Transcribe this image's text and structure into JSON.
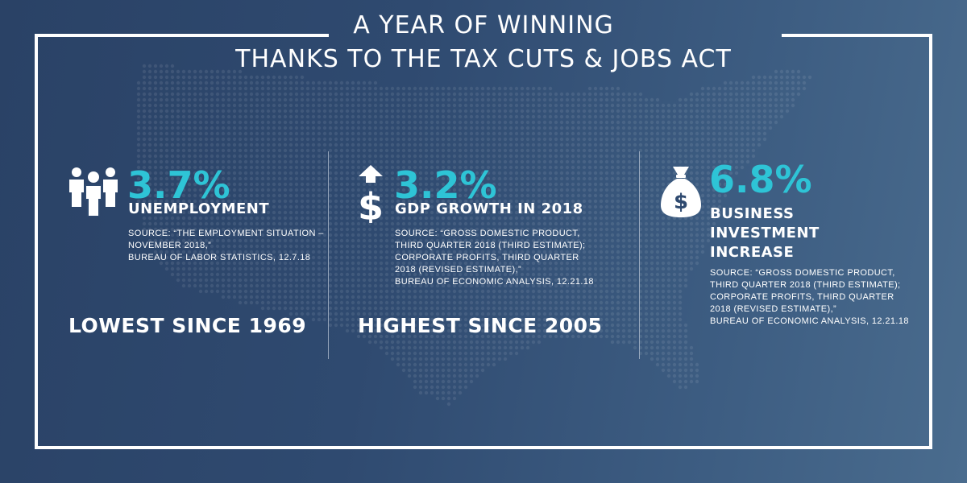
{
  "title": {
    "line1": "A YEAR OF WINNING",
    "line2": "THANKS TO THE TAX CUTS & JOBS ACT"
  },
  "stats": [
    {
      "icon": "people-icon",
      "value": "3.7%",
      "label_lines": [
        "UNEMPLOYMENT"
      ],
      "source_lines": [
        "SOURCE: “THE EMPLOYMENT SITUATION –",
        "NOVEMBER 2018,”",
        "BUREAU OF LABOR STATISTICS, 12.7.18"
      ],
      "headline": "LOWEST SINCE 1969"
    },
    {
      "icon": "dollar-up-arrow-icon",
      "value": "3.2%",
      "label_lines": [
        "GDP GROWTH IN 2018"
      ],
      "source_lines": [
        "SOURCE: “GROSS DOMESTIC PRODUCT,",
        "THIRD QUARTER 2018 (THIRD ESTIMATE);",
        "CORPORATE PROFITS, THIRD QUARTER",
        "2018 (REVISED ESTIMATE),”",
        "BUREAU OF ECONOMIC ANALYSIS, 12.21.18"
      ],
      "headline": "HIGHEST SINCE 2005"
    },
    {
      "icon": "money-bag-icon",
      "value": "6.8%",
      "label_lines": [
        "BUSINESS",
        "INVESTMENT",
        "INCREASE"
      ],
      "source_lines": [
        "SOURCE: “GROSS DOMESTIC PRODUCT,",
        "THIRD QUARTER 2018 (THIRD ESTIMATE);",
        "CORPORATE PROFITS, THIRD QUARTER",
        "2018 (REVISED ESTIMATE),”",
        "BUREAU OF ECONOMIC ANALYSIS, 12.21.18"
      ],
      "headline": ""
    }
  ],
  "colors": {
    "accent": "#2ec4d6",
    "background_dark": "#2a4266",
    "background_light": "#4a6c8e",
    "text": "#ffffff"
  }
}
